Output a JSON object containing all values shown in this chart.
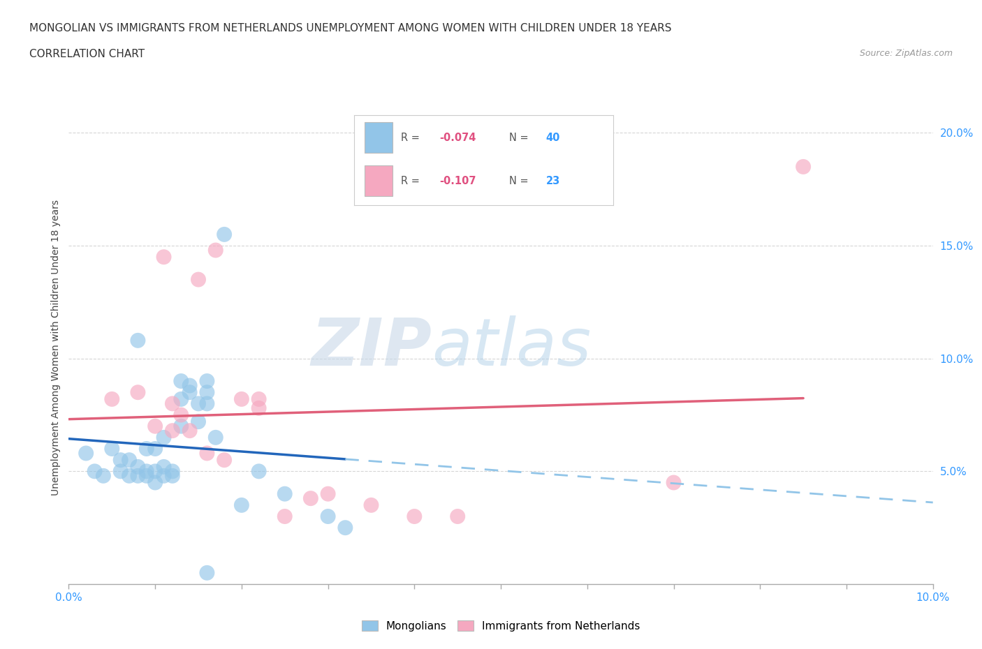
{
  "title_line1": "MONGOLIAN VS IMMIGRANTS FROM NETHERLANDS UNEMPLOYMENT AMONG WOMEN WITH CHILDREN UNDER 18 YEARS",
  "title_line2": "CORRELATION CHART",
  "source": "Source: ZipAtlas.com",
  "ylabel": "Unemployment Among Women with Children Under 18 years",
  "xlim": [
    0.0,
    0.1
  ],
  "ylim": [
    0.0,
    0.21
  ],
  "yticks": [
    0.05,
    0.1,
    0.15,
    0.2
  ],
  "xticks": [
    0.0,
    0.01,
    0.02,
    0.03,
    0.04,
    0.05,
    0.06,
    0.07,
    0.08,
    0.09,
    0.1
  ],
  "ytick_labels": [
    "5.0%",
    "10.0%",
    "15.0%",
    "20.0%"
  ],
  "mongolian_R": -0.074,
  "mongolian_N": 40,
  "netherlands_R": -0.107,
  "netherlands_N": 23,
  "mongolian_color": "#92C5E8",
  "netherlands_color": "#F5A8C0",
  "trend_mongolian_color": "#2266BB",
  "trend_netherlands_color": "#E0607A",
  "trend_mongolian_dashed_color": "#92C5E8",
  "watermark_zip": "ZIP",
  "watermark_atlas": "atlas",
  "mongolian_x": [
    0.002,
    0.003,
    0.004,
    0.005,
    0.006,
    0.006,
    0.007,
    0.007,
    0.008,
    0.008,
    0.008,
    0.009,
    0.009,
    0.009,
    0.01,
    0.01,
    0.01,
    0.011,
    0.011,
    0.011,
    0.012,
    0.012,
    0.013,
    0.013,
    0.013,
    0.014,
    0.014,
    0.015,
    0.015,
    0.016,
    0.016,
    0.016,
    0.017,
    0.018,
    0.02,
    0.022,
    0.025,
    0.03,
    0.032,
    0.016
  ],
  "mongolian_y": [
    0.058,
    0.05,
    0.048,
    0.06,
    0.05,
    0.055,
    0.048,
    0.055,
    0.048,
    0.052,
    0.108,
    0.06,
    0.05,
    0.048,
    0.05,
    0.045,
    0.06,
    0.048,
    0.052,
    0.065,
    0.048,
    0.05,
    0.09,
    0.082,
    0.07,
    0.088,
    0.085,
    0.08,
    0.072,
    0.09,
    0.085,
    0.08,
    0.065,
    0.155,
    0.035,
    0.05,
    0.04,
    0.03,
    0.025,
    0.005
  ],
  "netherlands_x": [
    0.005,
    0.008,
    0.01,
    0.011,
    0.012,
    0.012,
    0.013,
    0.014,
    0.015,
    0.016,
    0.017,
    0.018,
    0.02,
    0.022,
    0.022,
    0.025,
    0.028,
    0.03,
    0.035,
    0.04,
    0.045,
    0.07,
    0.085
  ],
  "netherlands_y": [
    0.082,
    0.085,
    0.07,
    0.145,
    0.068,
    0.08,
    0.075,
    0.068,
    0.135,
    0.058,
    0.148,
    0.055,
    0.082,
    0.078,
    0.082,
    0.03,
    0.038,
    0.04,
    0.035,
    0.03,
    0.03,
    0.045,
    0.185
  ],
  "background_color": "#ffffff",
  "grid_color": "#cccccc"
}
